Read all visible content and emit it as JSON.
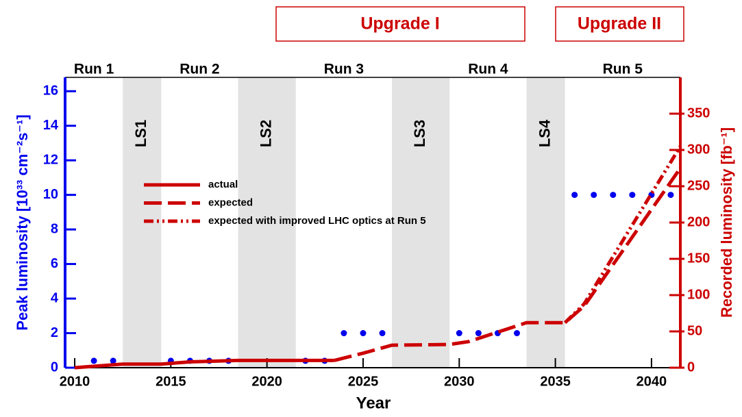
{
  "chart_data": {
    "type": "line",
    "x_label": "Year",
    "y_label": "Peak luminosity [10³³ cm⁻²s⁻¹]",
    "y2_label": "Recorded luminosity [fb⁻¹]",
    "xlim": [
      2009.5,
      2041.5
    ],
    "xticks": [
      2010,
      2015,
      2020,
      2025,
      2030,
      2035,
      2040
    ],
    "ylim": [
      0,
      16.8
    ],
    "yticks": [
      0,
      2,
      4,
      6,
      8,
      10,
      12,
      14,
      16
    ],
    "y2lim": [
      0,
      400
    ],
    "y2ticks": [
      0,
      50,
      100,
      150,
      200,
      250,
      300,
      350
    ],
    "left_color": "#0000ee",
    "right_color": "#cc0000",
    "shade_color": "#e3e3e3",
    "shutdowns": [
      {
        "label": "LS1",
        "start": 2012.5,
        "end": 2014.5
      },
      {
        "label": "LS2",
        "start": 2018.5,
        "end": 2021.5
      },
      {
        "label": "LS3",
        "start": 2026.5,
        "end": 2029.5
      },
      {
        "label": "LS4",
        "start": 2033.5,
        "end": 2035.5
      }
    ],
    "runs": [
      {
        "label": "Run 1",
        "start": 2009.5,
        "end": 2012.5
      },
      {
        "label": "Run 2",
        "start": 2014.5,
        "end": 2018.5
      },
      {
        "label": "Run 3",
        "start": 2021.5,
        "end": 2026.5
      },
      {
        "label": "Run 4",
        "start": 2029.5,
        "end": 2033.5
      },
      {
        "label": "Run 5",
        "start": 2035.5,
        "end": 2041.5
      }
    ],
    "upgrades": [
      "Upgrade I",
      "Upgrade II"
    ],
    "peak": {
      "color": "#0000ee",
      "x": [
        2011,
        2012,
        2015,
        2016,
        2017,
        2018,
        2022,
        2023,
        2024,
        2025,
        2026,
        2030,
        2031,
        2032,
        2033,
        2036,
        2037,
        2038,
        2039,
        2040,
        2041
      ],
      "values": [
        0.4,
        0.4,
        0.4,
        0.4,
        0.4,
        0.4,
        0.4,
        0.4,
        2,
        2,
        2,
        2,
        2,
        2,
        2,
        10,
        10,
        10,
        10,
        10,
        10
      ]
    },
    "series": [
      {
        "name": "actual",
        "color": "#cc0000",
        "axis": "y2",
        "dash": "solid",
        "x": [
          2010,
          2012.5,
          2014.5,
          2015,
          2016,
          2018.5,
          2021.5,
          2023.5
        ],
        "values": [
          0,
          5,
          5,
          6,
          8,
          10,
          10,
          10
        ]
      },
      {
        "name": "expected",
        "color": "#cc0000",
        "axis": "y2",
        "dash": "dashed",
        "x": [
          2023.5,
          2025,
          2026.5,
          2029.5,
          2030.5,
          2033.5,
          2035.5,
          2036.5,
          2041.5
        ],
        "values": [
          10,
          20,
          31,
          32,
          36,
          62,
          62,
          85,
          275
        ]
      },
      {
        "name": "expected with improved LHC optics at Run 5",
        "color": "#cc0000",
        "axis": "y2",
        "dash": "dashdotdot",
        "x": [
          2035.5,
          2036.5,
          2041.5
        ],
        "values": [
          62,
          88,
          305
        ]
      }
    ]
  }
}
